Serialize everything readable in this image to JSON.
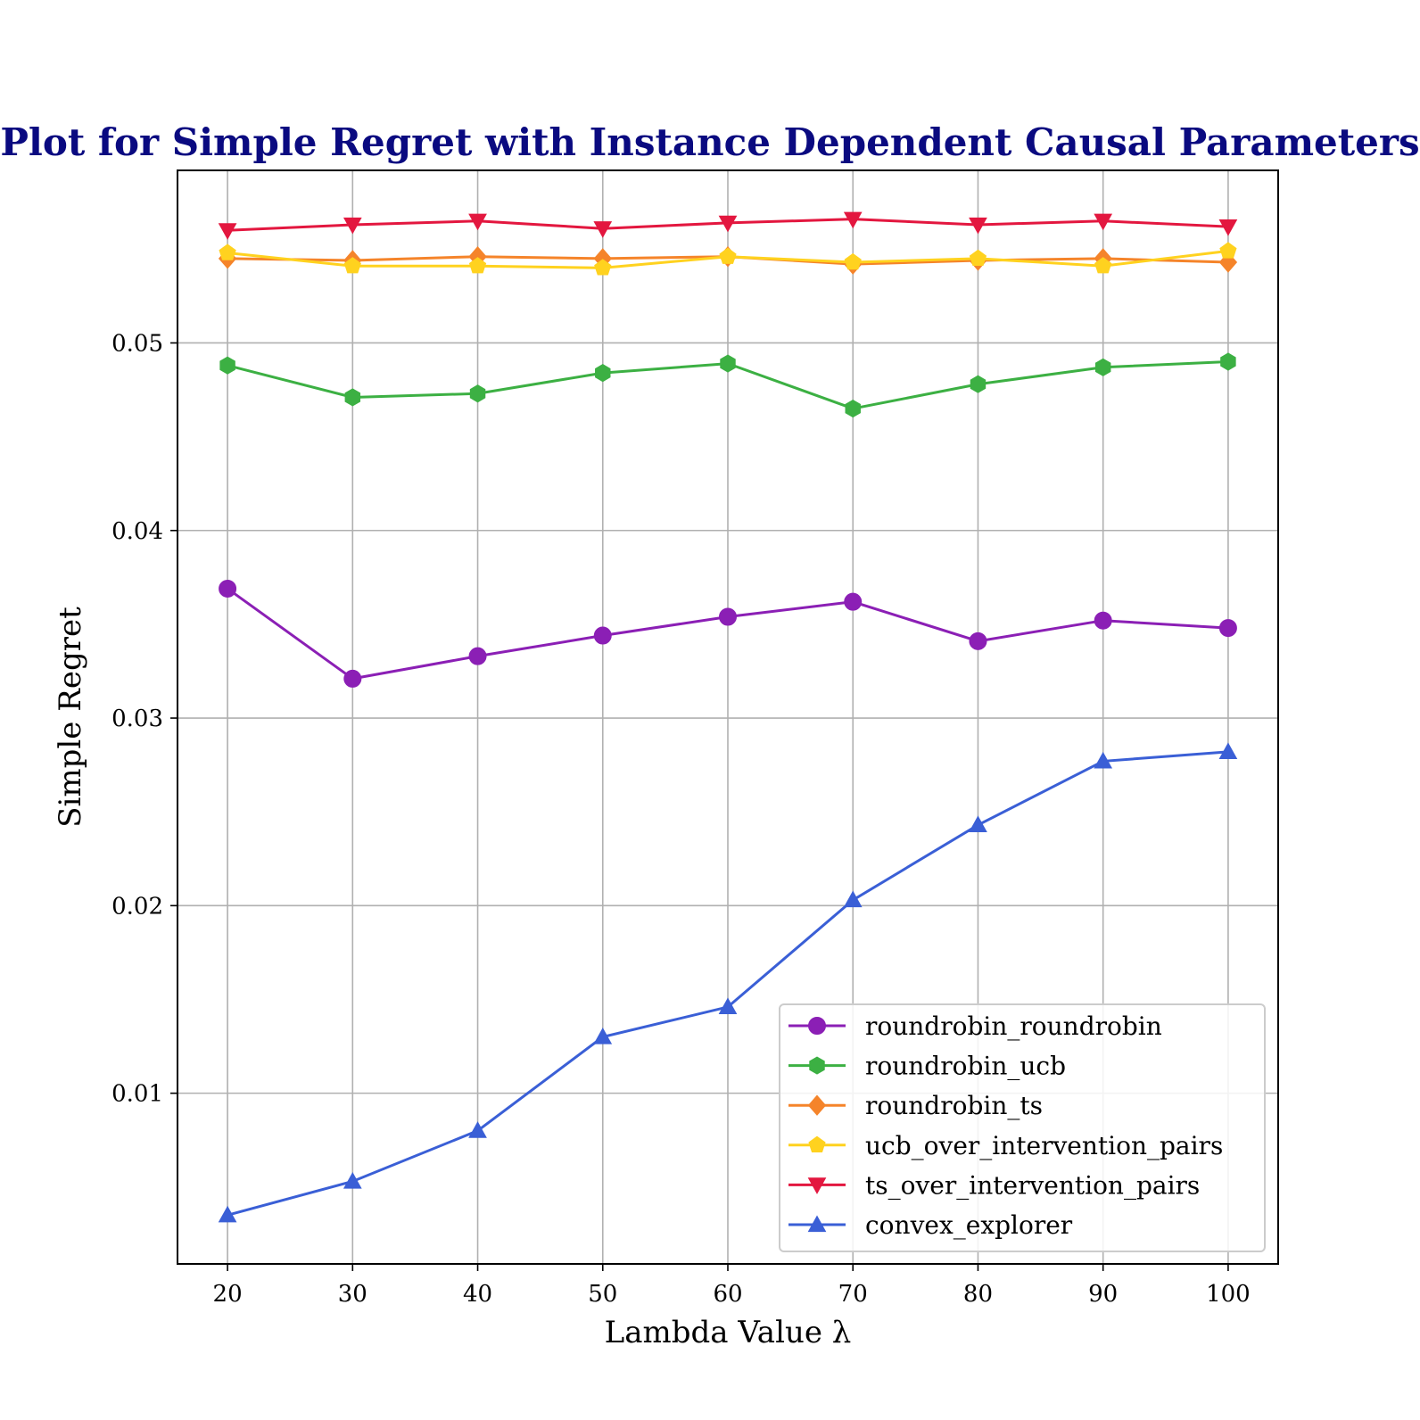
{
  "chart_data": {
    "type": "line",
    "title": "Plot for Simple Regret with Instance Dependent Causal Parameters",
    "xlabel": "Lambda Value λ",
    "ylabel": "Simple Regret",
    "x": [
      20,
      30,
      40,
      50,
      60,
      70,
      80,
      90,
      100
    ],
    "xticks": [
      "20",
      "30",
      "40",
      "50",
      "60",
      "70",
      "80",
      "90",
      "100"
    ],
    "yticks": [
      "0.01",
      "0.02",
      "0.03",
      "0.04",
      "0.05"
    ],
    "ytick_values": [
      0.01,
      0.02,
      0.03,
      0.04,
      0.05
    ],
    "xlim": [
      16,
      104
    ],
    "ylim": [
      0.0009,
      0.0592
    ],
    "grid": true,
    "legend_position": "lower-right",
    "title_color": "#0a0a80",
    "series": [
      {
        "name": "roundrobin_roundrobin",
        "color": "#8b1fb5",
        "marker": "circle",
        "values": [
          0.0369,
          0.0321,
          0.0333,
          0.0344,
          0.0354,
          0.0362,
          0.0341,
          0.0352,
          0.0348
        ]
      },
      {
        "name": "roundrobin_ucb",
        "color": "#3cb043",
        "marker": "hexagon",
        "values": [
          0.0488,
          0.0471,
          0.0473,
          0.0484,
          0.0489,
          0.0465,
          0.0478,
          0.0487,
          0.049
        ]
      },
      {
        "name": "roundrobin_ts",
        "color": "#f5842a",
        "marker": "diamond",
        "values": [
          0.0545,
          0.0544,
          0.0546,
          0.0545,
          0.0546,
          0.0542,
          0.0544,
          0.0545,
          0.0543
        ]
      },
      {
        "name": "ucb_over_intervention_pairs",
        "color": "#ffd21f",
        "marker": "pentagon",
        "values": [
          0.0548,
          0.0541,
          0.0541,
          0.054,
          0.0546,
          0.0543,
          0.0545,
          0.0541,
          0.0549
        ]
      },
      {
        "name": "ts_over_intervention_pairs",
        "color": "#e3173f",
        "marker": "triangle-down",
        "values": [
          0.056,
          0.0563,
          0.0565,
          0.0561,
          0.0564,
          0.0566,
          0.0563,
          0.0565,
          0.0562
        ]
      },
      {
        "name": "convex_explorer",
        "color": "#3a5fd6",
        "marker": "triangle-up",
        "values": [
          0.0035,
          0.0053,
          0.008,
          0.013,
          0.0146,
          0.0203,
          0.0243,
          0.0277,
          0.0282
        ]
      }
    ]
  }
}
